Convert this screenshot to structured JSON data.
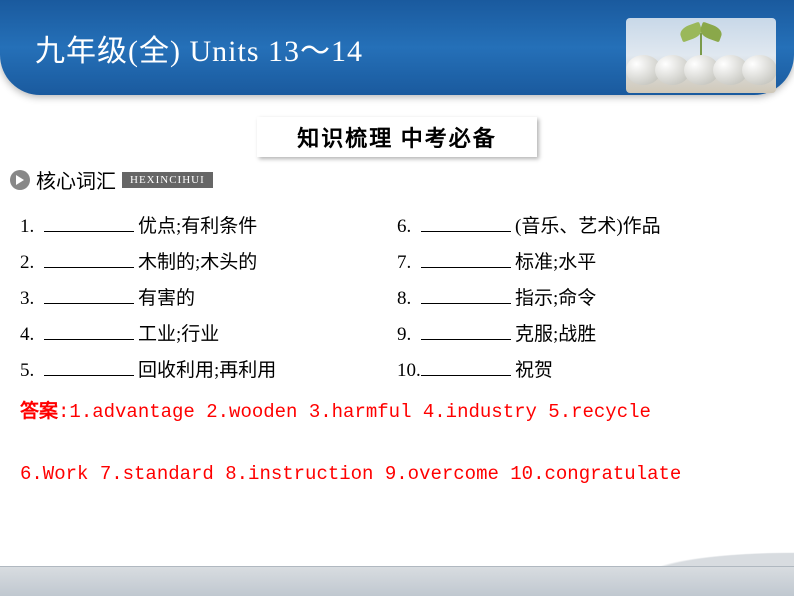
{
  "header": {
    "title": "九年级(全) Units 13～14"
  },
  "section": {
    "title": "知识梳理 中考必备"
  },
  "subsection": {
    "title": "核心词汇",
    "pinyin": "HEXINCIHUI"
  },
  "vocab": {
    "left": [
      {
        "num": "1.",
        "meaning": " 优点;有利条件"
      },
      {
        "num": "2.",
        "meaning": "木制的;木头的"
      },
      {
        "num": "3.",
        "meaning": " 有害的"
      },
      {
        "num": "4.",
        "meaning": "工业;行业"
      },
      {
        "num": "5.",
        "meaning": " 回收利用;再利用"
      }
    ],
    "right": [
      {
        "num": "6.",
        "meaning": " (音乐、艺术)作品"
      },
      {
        "num": "7.",
        "meaning": "标准;水平"
      },
      {
        "num": "8.",
        "meaning": " 指示;命令"
      },
      {
        "num": "9.",
        "meaning": " 克服;战胜"
      },
      {
        "num": "10.",
        "meaning": "祝贺"
      }
    ]
  },
  "answers": {
    "label": "答案",
    "line1": ":1.advantage  2.wooden  3.harmful  4.industry  5.recycle",
    "line2": "6.Work 7.standard  8.instruction  9.overcome 10.congratulate"
  },
  "colors": {
    "header_bg": "#1a5a9e",
    "answer_color": "#ff0000",
    "text_color": "#000000",
    "footer_bg": "#d0d8e0"
  }
}
